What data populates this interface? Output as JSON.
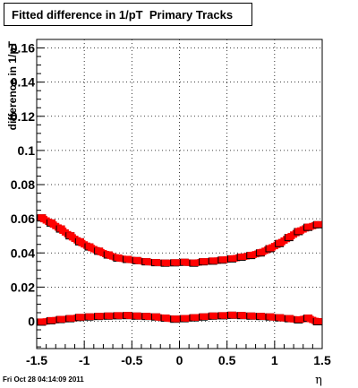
{
  "title": "Fitted difference in 1/pT  Primary Tracks",
  "footer_text": "Fri Oct 28 04:14:09 2011",
  "chart_data": {
    "type": "scatter",
    "xlabel": "η",
    "ylabel": "difference in 1/pT",
    "xlim": [
      -1.5,
      1.5
    ],
    "ylim": [
      -0.016,
      0.165
    ],
    "x_ticks": [
      "-1.5",
      "-1",
      "-0.5",
      "0",
      "0.5",
      "1",
      "1.5"
    ],
    "y_ticks": [
      "0",
      "0.02",
      "0.04",
      "0.06",
      "0.08",
      "0.1",
      "0.12",
      "0.14",
      "0.16"
    ],
    "grid": true,
    "series": [
      {
        "color": "#ff0000",
        "edge_color": "#000000",
        "x": [
          -1.45,
          -1.35,
          -1.25,
          -1.15,
          -1.05,
          -0.95,
          -0.85,
          -0.75,
          -0.65,
          -0.55,
          -0.45,
          -0.35,
          -0.25,
          -0.15,
          -0.05,
          0.05,
          0.15,
          0.25,
          0.35,
          0.45,
          0.55,
          0.65,
          0.75,
          0.85,
          0.95,
          1.05,
          1.15,
          1.25,
          1.35,
          1.45
        ],
        "y": [
          0.0605,
          0.0575,
          0.054,
          0.05,
          0.0465,
          0.0435,
          0.041,
          0.0388,
          0.037,
          0.0362,
          0.0355,
          0.0348,
          0.0343,
          0.034,
          0.0342,
          0.0345,
          0.034,
          0.0348,
          0.0352,
          0.0358,
          0.0365,
          0.0375,
          0.0385,
          0.04,
          0.0425,
          0.0455,
          0.049,
          0.0525,
          0.055,
          0.0565
        ]
      },
      {
        "color": "#ff0000",
        "edge_color": "#000000",
        "x": [
          -1.45,
          -1.35,
          -1.25,
          -1.15,
          -1.05,
          -0.95,
          -0.85,
          -0.75,
          -0.65,
          -0.55,
          -0.45,
          -0.35,
          -0.25,
          -0.15,
          -0.05,
          0.05,
          0.15,
          0.25,
          0.35,
          0.45,
          0.55,
          0.65,
          0.75,
          0.85,
          0.95,
          1.05,
          1.15,
          1.25,
          1.35,
          1.45
        ],
        "y": [
          -0.0005,
          0.0003,
          0.001,
          0.0015,
          0.0022,
          0.0025,
          0.0028,
          0.003,
          0.0032,
          0.0033,
          0.003,
          0.0028,
          0.0025,
          0.0018,
          0.0012,
          0.0015,
          0.002,
          0.0025,
          0.003,
          0.0032,
          0.0035,
          0.0033,
          0.003,
          0.0028,
          0.0025,
          0.002,
          0.0015,
          0.0008,
          0.0018,
          -0.0003
        ]
      }
    ]
  }
}
